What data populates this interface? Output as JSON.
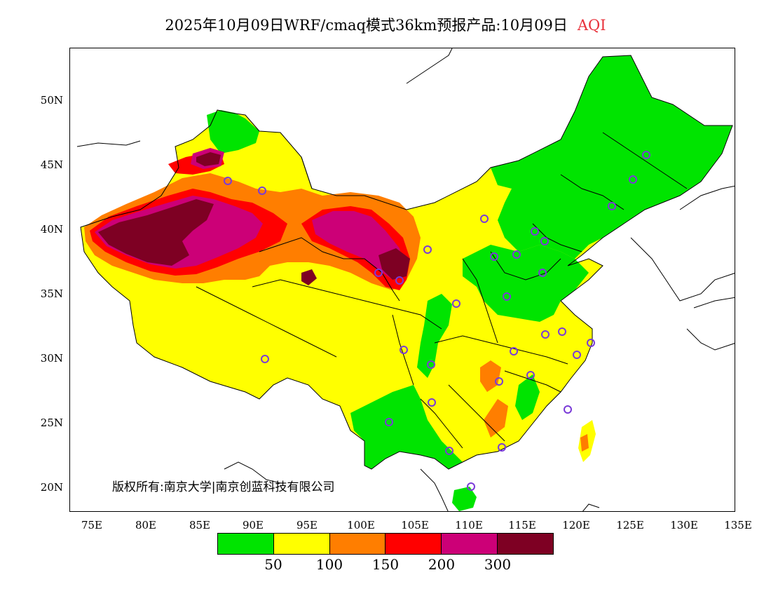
{
  "title": {
    "main": "2025年10月09日WRF/cmaq模式36km预报产品:10月09日",
    "variable": "AQI"
  },
  "map": {
    "lat_labels": [
      "50N",
      "45N",
      "40N",
      "35N",
      "30N",
      "25N",
      "20N"
    ],
    "lon_labels": [
      "75E",
      "80E",
      "85E",
      "90E",
      "95E",
      "100E",
      "105E",
      "110E",
      "115E",
      "120E",
      "125E",
      "130E",
      "135E"
    ],
    "colors": {
      "good": "#00e400",
      "moderate": "#ffff00",
      "usg": "#ff7e00",
      "unhealthy": "#ff0000",
      "very_unhealthy": "#cc0077",
      "hazardous": "#7e0023"
    }
  },
  "copyright": "版权所有:南京大学|南京创蓝科技有限公司",
  "legend": {
    "colors": [
      "#00e400",
      "#ffff00",
      "#ff7e00",
      "#ff0000",
      "#cc0077",
      "#7e0023"
    ],
    "labels": [
      "50",
      "100",
      "150",
      "200",
      "300"
    ]
  }
}
